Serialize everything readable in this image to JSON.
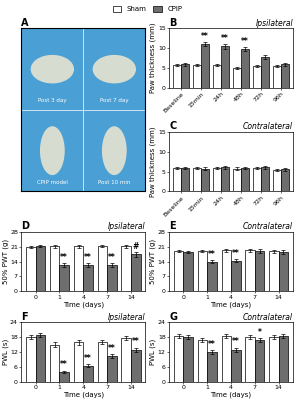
{
  "chart_data": [
    {
      "type": "image",
      "color": "#4a9fd4",
      "colors": [
        "#f0e8d0",
        "#f0e8d0",
        "#f0e8d0",
        "#f0e8d0"
      ],
      "categories": [
        "Post 3 day",
        "Post 7 day",
        "CPIP model",
        "Post 10 min"
      ],
      "tick_labels": false,
      "annotations": [
        {
          "text": "A"
        }
      ]
    },
    {
      "type": "bar",
      "title": "Ipsilateral",
      "y_label": "Paw thickness (mm)",
      "categories": [
        "Baseline",
        "15min",
        "24h",
        "48h",
        "72h",
        "96h"
      ],
      "series": [
        {
          "name": "Sham",
          "color": "#ffffff",
          "values": [
            5.8,
            5.8,
            5.7,
            4.9,
            5.5,
            5.4
          ],
          "errors": [
            0.3,
            0.3,
            0.3,
            0.2,
            0.3,
            0.3
          ]
        },
        {
          "name": "CPIP",
          "color": "#6e6e6e",
          "values": [
            5.9,
            11.0,
            10.5,
            9.8,
            7.8,
            5.9
          ],
          "errors": [
            0.3,
            0.5,
            0.6,
            0.5,
            0.5,
            0.4
          ]
        }
      ],
      "ylim": [
        0,
        15
      ],
      "yticks": [
        0,
        5,
        10,
        15
      ],
      "legend": "upper center",
      "annotations": [
        {
          "text": "B"
        },
        {
          "text": "**",
          "category": "15min",
          "series": "CPIP"
        },
        {
          "text": "**",
          "category": "24h",
          "series": "CPIP"
        },
        {
          "text": "**",
          "category": "48h",
          "series": "CPIP"
        }
      ]
    },
    {
      "type": "bar",
      "title": "Contralateral",
      "y_label": "Paw thickness (mm)",
      "categories": [
        "Baseline",
        "15min",
        "24h",
        "48h",
        "72h",
        "96h"
      ],
      "series": [
        {
          "name": "Sham",
          "color": "#ffffff",
          "values": [
            6.0,
            5.9,
            6.0,
            5.8,
            6.0,
            5.5
          ],
          "errors": [
            0.3,
            0.3,
            0.3,
            0.3,
            0.3,
            0.3
          ]
        },
        {
          "name": "CPIP",
          "color": "#6e6e6e",
          "values": [
            5.9,
            5.8,
            6.1,
            6.0,
            6.1,
            5.6
          ],
          "errors": [
            0.3,
            0.3,
            0.3,
            0.3,
            0.3,
            0.3
          ]
        }
      ],
      "ylim": [
        0,
        15
      ],
      "yticks": [
        0,
        5,
        10,
        15
      ],
      "legend": "upper center",
      "annotations": [
        {
          "text": "C"
        }
      ]
    },
    {
      "type": "bar",
      "title": "Ipsilateral",
      "y_label": "50% PWT (g)",
      "x_label": "Time (days)",
      "categories": [
        "0",
        "1",
        "4",
        "7",
        "14"
      ],
      "series": [
        {
          "name": "Sham",
          "color": "#ffffff",
          "values": [
            21.0,
            21.2,
            21.3,
            21.5,
            21.2
          ],
          "errors": [
            0.6,
            0.8,
            0.7,
            0.6,
            0.7
          ]
        },
        {
          "name": "CPIP",
          "color": "#6e6e6e",
          "values": [
            21.5,
            12.5,
            12.5,
            12.3,
            17.5
          ],
          "errors": [
            0.6,
            1.0,
            1.0,
            1.0,
            1.2
          ]
        }
      ],
      "ylim": [
        0,
        28
      ],
      "yticks": [
        0,
        7,
        14,
        21,
        28
      ],
      "legend": "upper center",
      "annotations": [
        {
          "text": "D"
        },
        {
          "text": "**",
          "category": "1",
          "series": "CPIP"
        },
        {
          "text": "**",
          "category": "4",
          "series": "CPIP"
        },
        {
          "text": "**",
          "category": "7",
          "series": "CPIP"
        },
        {
          "text": "#",
          "category": "14",
          "series": "CPIP"
        }
      ]
    },
    {
      "type": "bar",
      "title": "Contralateral",
      "y_label": "50% PWT (g)",
      "x_label": "Time (days)",
      "categories": [
        "0",
        "1",
        "4",
        "7",
        "14"
      ],
      "series": [
        {
          "name": "Sham",
          "color": "#ffffff",
          "values": [
            19.0,
            19.0,
            19.5,
            19.5,
            19.0
          ],
          "errors": [
            0.6,
            0.6,
            0.7,
            0.7,
            0.7
          ]
        },
        {
          "name": "CPIP",
          "color": "#6e6e6e",
          "values": [
            18.5,
            14.0,
            14.5,
            19.0,
            18.5
          ],
          "errors": [
            0.5,
            0.8,
            0.8,
            0.8,
            0.8
          ]
        }
      ],
      "ylim": [
        0,
        28
      ],
      "yticks": [
        0,
        7,
        14,
        21,
        28
      ],
      "legend": "upper center",
      "annotations": [
        {
          "text": "E"
        },
        {
          "text": "**",
          "category": "1",
          "series": "CPIP"
        },
        {
          "text": "**",
          "category": "4",
          "series": "CPIP"
        }
      ]
    },
    {
      "type": "bar",
      "title": "Ipsilateral",
      "y_label": "PWL (s)",
      "x_label": "Time (days)",
      "categories": [
        "0",
        "1",
        "4",
        "7",
        "14"
      ],
      "series": [
        {
          "name": "Sham",
          "color": "#ffffff",
          "values": [
            18.0,
            15.0,
            16.0,
            16.0,
            17.5
          ],
          "errors": [
            0.8,
            1.0,
            1.0,
            0.8,
            0.8
          ]
        },
        {
          "name": "CPIP",
          "color": "#6e6e6e",
          "values": [
            19.0,
            4.0,
            6.5,
            10.5,
            13.0
          ],
          "errors": [
            0.8,
            0.5,
            0.5,
            0.8,
            0.8
          ]
        }
      ],
      "ylim": [
        0,
        24
      ],
      "yticks": [
        0,
        6,
        12,
        18,
        24
      ],
      "legend": "upper center",
      "annotations": [
        {
          "text": "F"
        },
        {
          "text": "**",
          "category": "1",
          "series": "CPIP"
        },
        {
          "text": "**",
          "category": "4",
          "series": "CPIP"
        },
        {
          "text": "**",
          "category": "7",
          "series": "CPIP"
        },
        {
          "text": "**",
          "category": "14",
          "series": "CPIP"
        }
      ]
    },
    {
      "type": "bar",
      "title": "Contralateral",
      "y_label": "PWL (s)",
      "x_label": "Time (days)",
      "categories": [
        "0",
        "1",
        "4",
        "7",
        "14"
      ],
      "series": [
        {
          "name": "Sham",
          "color": "#ffffff",
          "values": [
            18.5,
            17.0,
            18.5,
            18.0,
            18.0
          ],
          "errors": [
            0.8,
            0.8,
            0.8,
            0.8,
            0.8
          ]
        },
        {
          "name": "CPIP",
          "color": "#6e6e6e",
          "values": [
            18.0,
            12.0,
            13.0,
            17.0,
            18.5
          ],
          "errors": [
            0.8,
            0.8,
            0.8,
            0.8,
            0.8
          ]
        }
      ],
      "ylim": [
        0,
        24
      ],
      "yticks": [
        0,
        6,
        12,
        18,
        24
      ],
      "legend": "upper center",
      "annotations": [
        {
          "text": "G"
        },
        {
          "text": "**",
          "category": "1",
          "series": "CPIP"
        },
        {
          "text": "**",
          "category": "4",
          "series": "CPIP"
        },
        {
          "text": "*",
          "category": "7",
          "series": "CPIP"
        }
      ]
    }
  ]
}
